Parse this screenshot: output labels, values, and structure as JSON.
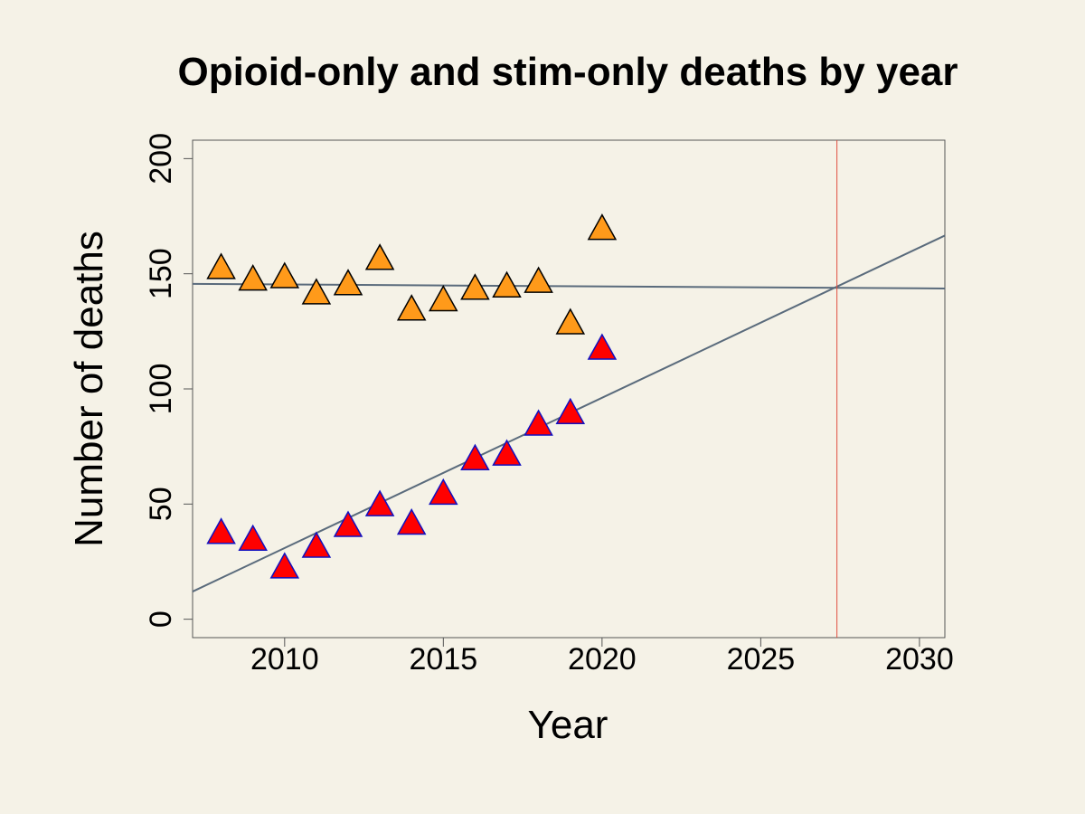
{
  "chart_data": {
    "type": "scatter",
    "title": "Opioid-only and stim-only deaths by year",
    "xlabel": "Year",
    "ylabel": "Number of deaths",
    "xlim": [
      2007.1,
      2030.8
    ],
    "ylim": [
      -8,
      208
    ],
    "x_ticks": [
      2010,
      2015,
      2020,
      2025,
      2030
    ],
    "y_ticks": [
      0,
      50,
      100,
      150,
      200
    ],
    "grid": false,
    "legend": "none",
    "series": [
      {
        "marker": "triangle",
        "fill_color": "#ff9a1a",
        "edge_color": "#000000",
        "points": [
          {
            "x": 2008,
            "y": 152
          },
          {
            "x": 2009,
            "y": 147
          },
          {
            "x": 2010,
            "y": 148
          },
          {
            "x": 2011,
            "y": 141
          },
          {
            "x": 2012,
            "y": 145
          },
          {
            "x": 2013,
            "y": 156
          },
          {
            "x": 2014,
            "y": 134
          },
          {
            "x": 2015,
            "y": 138
          },
          {
            "x": 2016,
            "y": 143
          },
          {
            "x": 2017,
            "y": 144
          },
          {
            "x": 2018,
            "y": 146
          },
          {
            "x": 2019,
            "y": 128
          },
          {
            "x": 2020,
            "y": 169
          }
        ],
        "trend_line": {
          "x": [
            2007.1,
            2030.8
          ],
          "y": [
            145.6,
            143.6
          ]
        }
      },
      {
        "marker": "triangle",
        "fill_color": "#ff0000",
        "edge_color": "#1010c0",
        "points": [
          {
            "x": 2008,
            "y": 37
          },
          {
            "x": 2009,
            "y": 34
          },
          {
            "x": 2010,
            "y": 22
          },
          {
            "x": 2011,
            "y": 31
          },
          {
            "x": 2012,
            "y": 40
          },
          {
            "x": 2013,
            "y": 49
          },
          {
            "x": 2014,
            "y": 41
          },
          {
            "x": 2015,
            "y": 54
          },
          {
            "x": 2016,
            "y": 69
          },
          {
            "x": 2017,
            "y": 71
          },
          {
            "x": 2018,
            "y": 84
          },
          {
            "x": 2019,
            "y": 89
          },
          {
            "x": 2020,
            "y": 117
          }
        ],
        "trend_line": {
          "x": [
            2007.1,
            2030.8
          ],
          "y": [
            12,
            166.6
          ]
        }
      }
    ],
    "trend_line_color": "#5a6b7c",
    "vertical_line": {
      "x": 2027.4,
      "color": "#e05040"
    }
  }
}
